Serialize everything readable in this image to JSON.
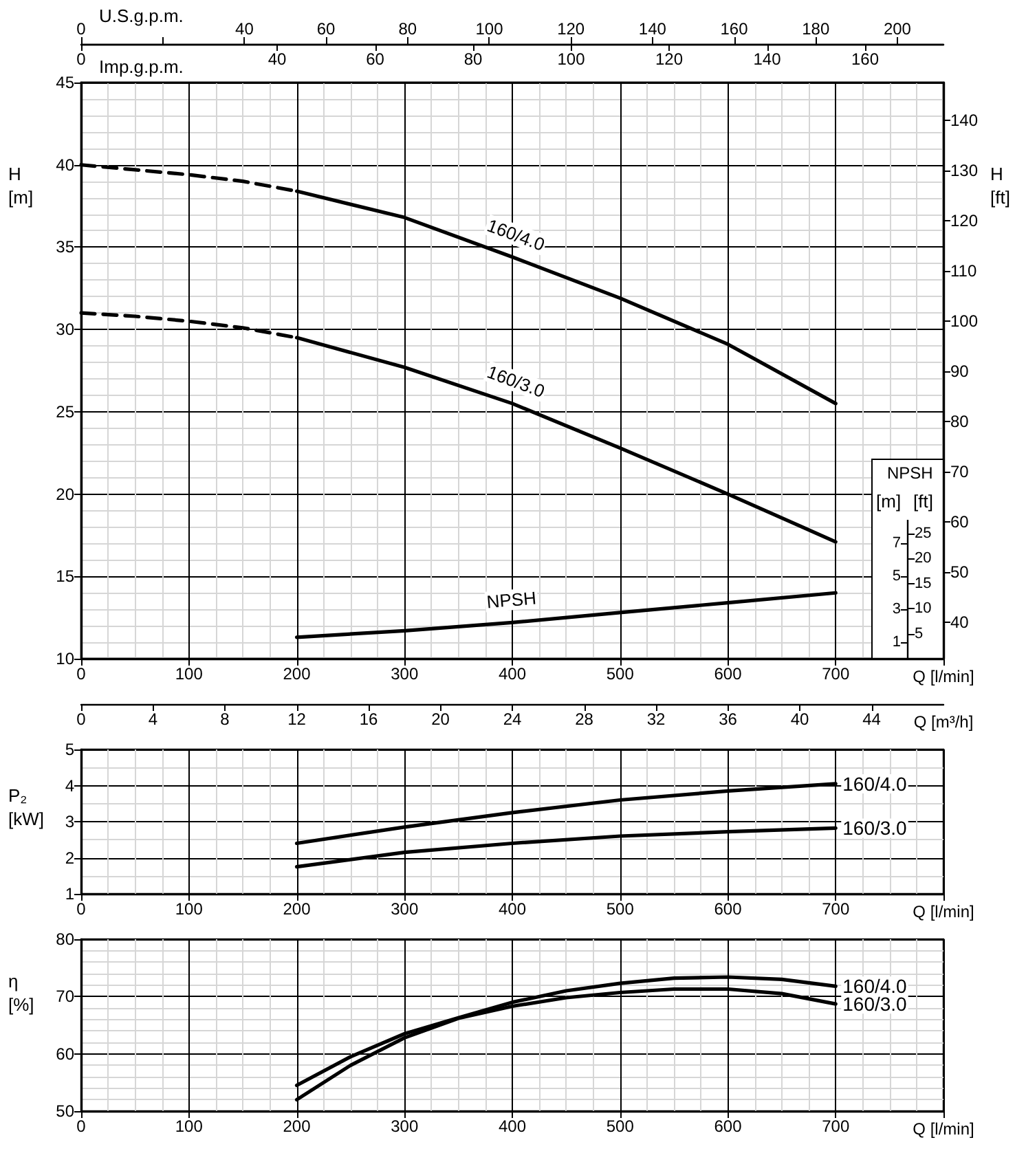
{
  "chart_data": [
    {
      "type": "line",
      "xlabel": "Q [l/min]",
      "ylabel": "H [m]",
      "y2label": "H [ft]",
      "x2label": "U.S.g.p.m.",
      "xlim": [
        0,
        800
      ],
      "xticks": [
        0,
        100,
        200,
        300,
        400,
        500,
        600,
        700
      ],
      "ylim": [
        10,
        45
      ],
      "yticks": [
        10,
        15,
        20,
        25,
        30,
        35,
        40,
        45
      ],
      "y2lim": [
        32.8,
        147.6
      ],
      "y2ticks": [
        40,
        50,
        60,
        70,
        80,
        90,
        100,
        110,
        120,
        130,
        140
      ],
      "x2lim": [
        0,
        211.3
      ],
      "x2ticks": [
        0,
        {
          "value": 20,
          "label": null
        },
        40,
        60,
        80,
        100,
        120,
        140,
        160,
        180,
        200
      ],
      "grid": true,
      "marker": "none",
      "series": [
        {
          "name": "160/4.0",
          "color": "#000000",
          "line_style": "solid",
          "x": [
            200,
            300,
            400,
            500,
            600,
            700
          ],
          "values": [
            38.4,
            36.8,
            34.4,
            31.9,
            29.1,
            25.5
          ]
        },
        {
          "color": "#000000",
          "line_style": "dashed",
          "x": [
            0,
            50,
            100,
            150,
            200
          ],
          "values": [
            40,
            39.7,
            39.4,
            39.0,
            38.4
          ]
        },
        {
          "name": "160/3.0",
          "color": "#000000",
          "line_style": "solid",
          "x": [
            200,
            300,
            400,
            500,
            600,
            700
          ],
          "values": [
            29.5,
            27.7,
            25.5,
            22.8,
            20.0,
            17.1
          ]
        },
        {
          "color": "#000000",
          "line_style": "dashed",
          "x": [
            0,
            50,
            100,
            150,
            200
          ],
          "values": [
            31,
            30.8,
            30.5,
            30.1,
            29.5
          ]
        }
      ]
    },
    {
      "type": "line",
      "xlabel": "Imp.g.p.m.",
      "ylabel": "[m]",
      "y2label": "[ft]",
      "annotations": [
        "NPSH"
      ],
      "xlim": [
        0,
        176
      ],
      "xticks": [
        0,
        40,
        60,
        80,
        100,
        120,
        140,
        160
      ],
      "ylim": [
        0,
        35
      ],
      "yticks": [
        1,
        3,
        5,
        7
      ],
      "y2lim": [
        0,
        114.8
      ],
      "y2ticks": [
        5,
        10,
        15,
        20,
        25
      ],
      "marker": "none",
      "series": [
        {
          "name": "NPSH",
          "color": "#000000",
          "line_style": "solid",
          "x": [
            44,
            66,
            88,
            110,
            132,
            154
          ],
          "values": [
            1.3,
            1.7,
            2.2,
            2.8,
            3.4,
            4.0
          ]
        }
      ]
    },
    {
      "type": "line",
      "xlabel": "Q [l/min]",
      "ylabel": "P₂ [kW]",
      "x2label": "Q [m³/h]",
      "xlim": [
        0,
        800
      ],
      "xticks": [
        0,
        100,
        200,
        300,
        400,
        500,
        600,
        700
      ],
      "x2lim": [
        0,
        48
      ],
      "x2ticks": [
        0,
        4,
        8,
        12,
        16,
        20,
        24,
        28,
        32,
        36,
        40,
        44
      ],
      "ylim": [
        1,
        5
      ],
      "yticks": [
        1,
        2,
        3,
        4,
        5
      ],
      "grid": true,
      "marker": "none",
      "x": [
        200,
        300,
        400,
        500,
        600,
        700
      ],
      "series": [
        {
          "name": "160/4.0",
          "color": "#000000",
          "values": [
            2.4,
            2.85,
            3.25,
            3.6,
            3.85,
            4.05
          ]
        },
        {
          "name": "160/3.0",
          "color": "#000000",
          "values": [
            1.75,
            2.15,
            2.4,
            2.6,
            2.72,
            2.82
          ]
        }
      ]
    },
    {
      "type": "line",
      "xlabel": "Q [l/min]",
      "ylabel": "η [%]",
      "xlim": [
        0,
        800
      ],
      "xticks": [
        0,
        100,
        200,
        300,
        400,
        500,
        600,
        700
      ],
      "ylim": [
        50,
        80
      ],
      "yticks": [
        50,
        60,
        70,
        80
      ],
      "grid": true,
      "marker": "none",
      "x": [
        200,
        250,
        300,
        350,
        400,
        450,
        500,
        550,
        600,
        650,
        700
      ],
      "series": [
        {
          "name": "160/4.0",
          "color": "#000000",
          "values": [
            54.5,
            59.5,
            63.5,
            66.3,
            69,
            71,
            72.3,
            73.2,
            73.4,
            73,
            71.8
          ]
        },
        {
          "name": "160/3.0",
          "color": "#000000",
          "values": [
            52,
            58,
            62.8,
            66.2,
            68.3,
            69.8,
            70.7,
            71.3,
            71.3,
            70.5,
            68.7
          ]
        }
      ]
    }
  ]
}
